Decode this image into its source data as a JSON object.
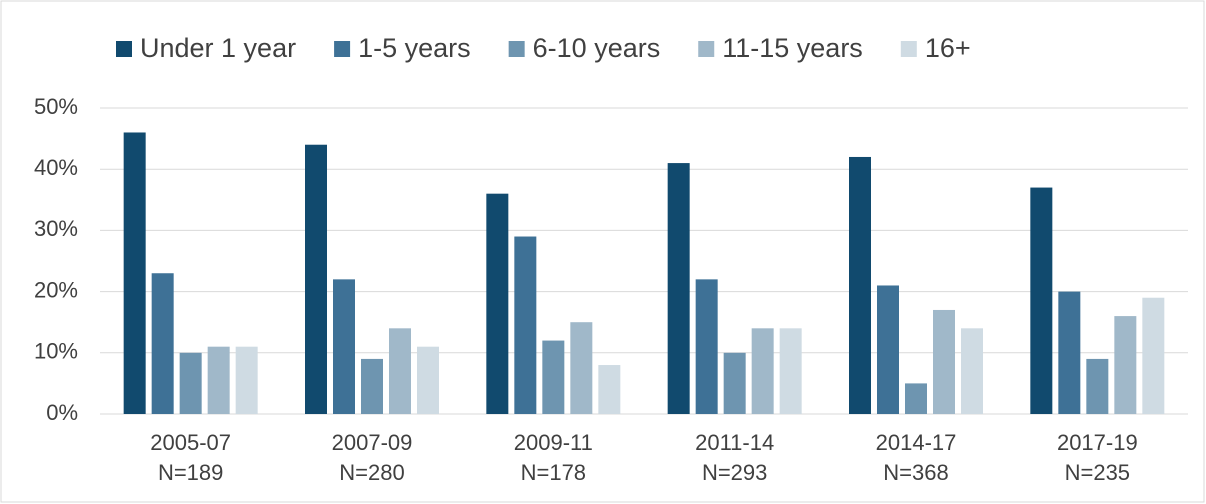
{
  "chart_data": {
    "type": "bar",
    "categories": [
      "2005-07",
      "2007-09",
      "2009-11",
      "2011-14",
      "2014-17",
      "2017-19"
    ],
    "sample_sizes": [
      "N=189",
      "N=280",
      "N=178",
      "N=293",
      "N=368",
      "N=235"
    ],
    "series": [
      {
        "name": "Under 1 year",
        "color": "#114a6e",
        "values": [
          46,
          44,
          36,
          41,
          42,
          37
        ]
      },
      {
        "name": "1-5 years",
        "color": "#3e7196",
        "values": [
          23,
          22,
          29,
          22,
          21,
          20
        ]
      },
      {
        "name": "6-10 years",
        "color": "#6e95b0",
        "values": [
          10,
          9,
          12,
          10,
          5,
          9
        ]
      },
      {
        "name": "11-15 years",
        "color": "#a0b8c9",
        "values": [
          11,
          14,
          15,
          14,
          17,
          16
        ]
      },
      {
        "name": "16+",
        "color": "#cfdbe3",
        "values": [
          11,
          11,
          8,
          14,
          14,
          19
        ]
      }
    ],
    "ylim": [
      0,
      50
    ],
    "yticks": [
      {
        "value": 0,
        "label": "0%"
      },
      {
        "value": 10,
        "label": "10%"
      },
      {
        "value": 20,
        "label": "20%"
      },
      {
        "value": 30,
        "label": "30%"
      },
      {
        "value": 40,
        "label": "40%"
      },
      {
        "value": 50,
        "label": "50%"
      }
    ],
    "grid": true,
    "legend": "top"
  }
}
